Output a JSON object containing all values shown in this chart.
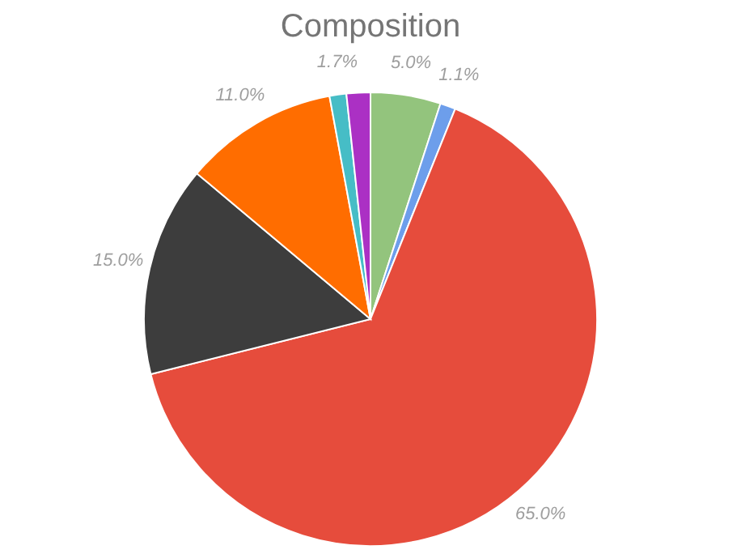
{
  "chart_data": {
    "type": "pie",
    "title": "Composition",
    "categories": [
      null,
      null,
      null,
      null,
      null,
      null,
      null
    ],
    "values": [
      5.0,
      1.1,
      65.0,
      15.0,
      11.0,
      1.2,
      1.7
    ],
    "value_labels": [
      "5.0%",
      "1.1%",
      "65.0%",
      "15.0%",
      "11.0%",
      null,
      "1.7%"
    ],
    "colors": [
      "#93c47d",
      "#6d9eeb",
      "#e64c3c",
      "#3d3d3d",
      "#ff6d00",
      "#46bdc6",
      "#ab30c4"
    ],
    "legend": false
  }
}
